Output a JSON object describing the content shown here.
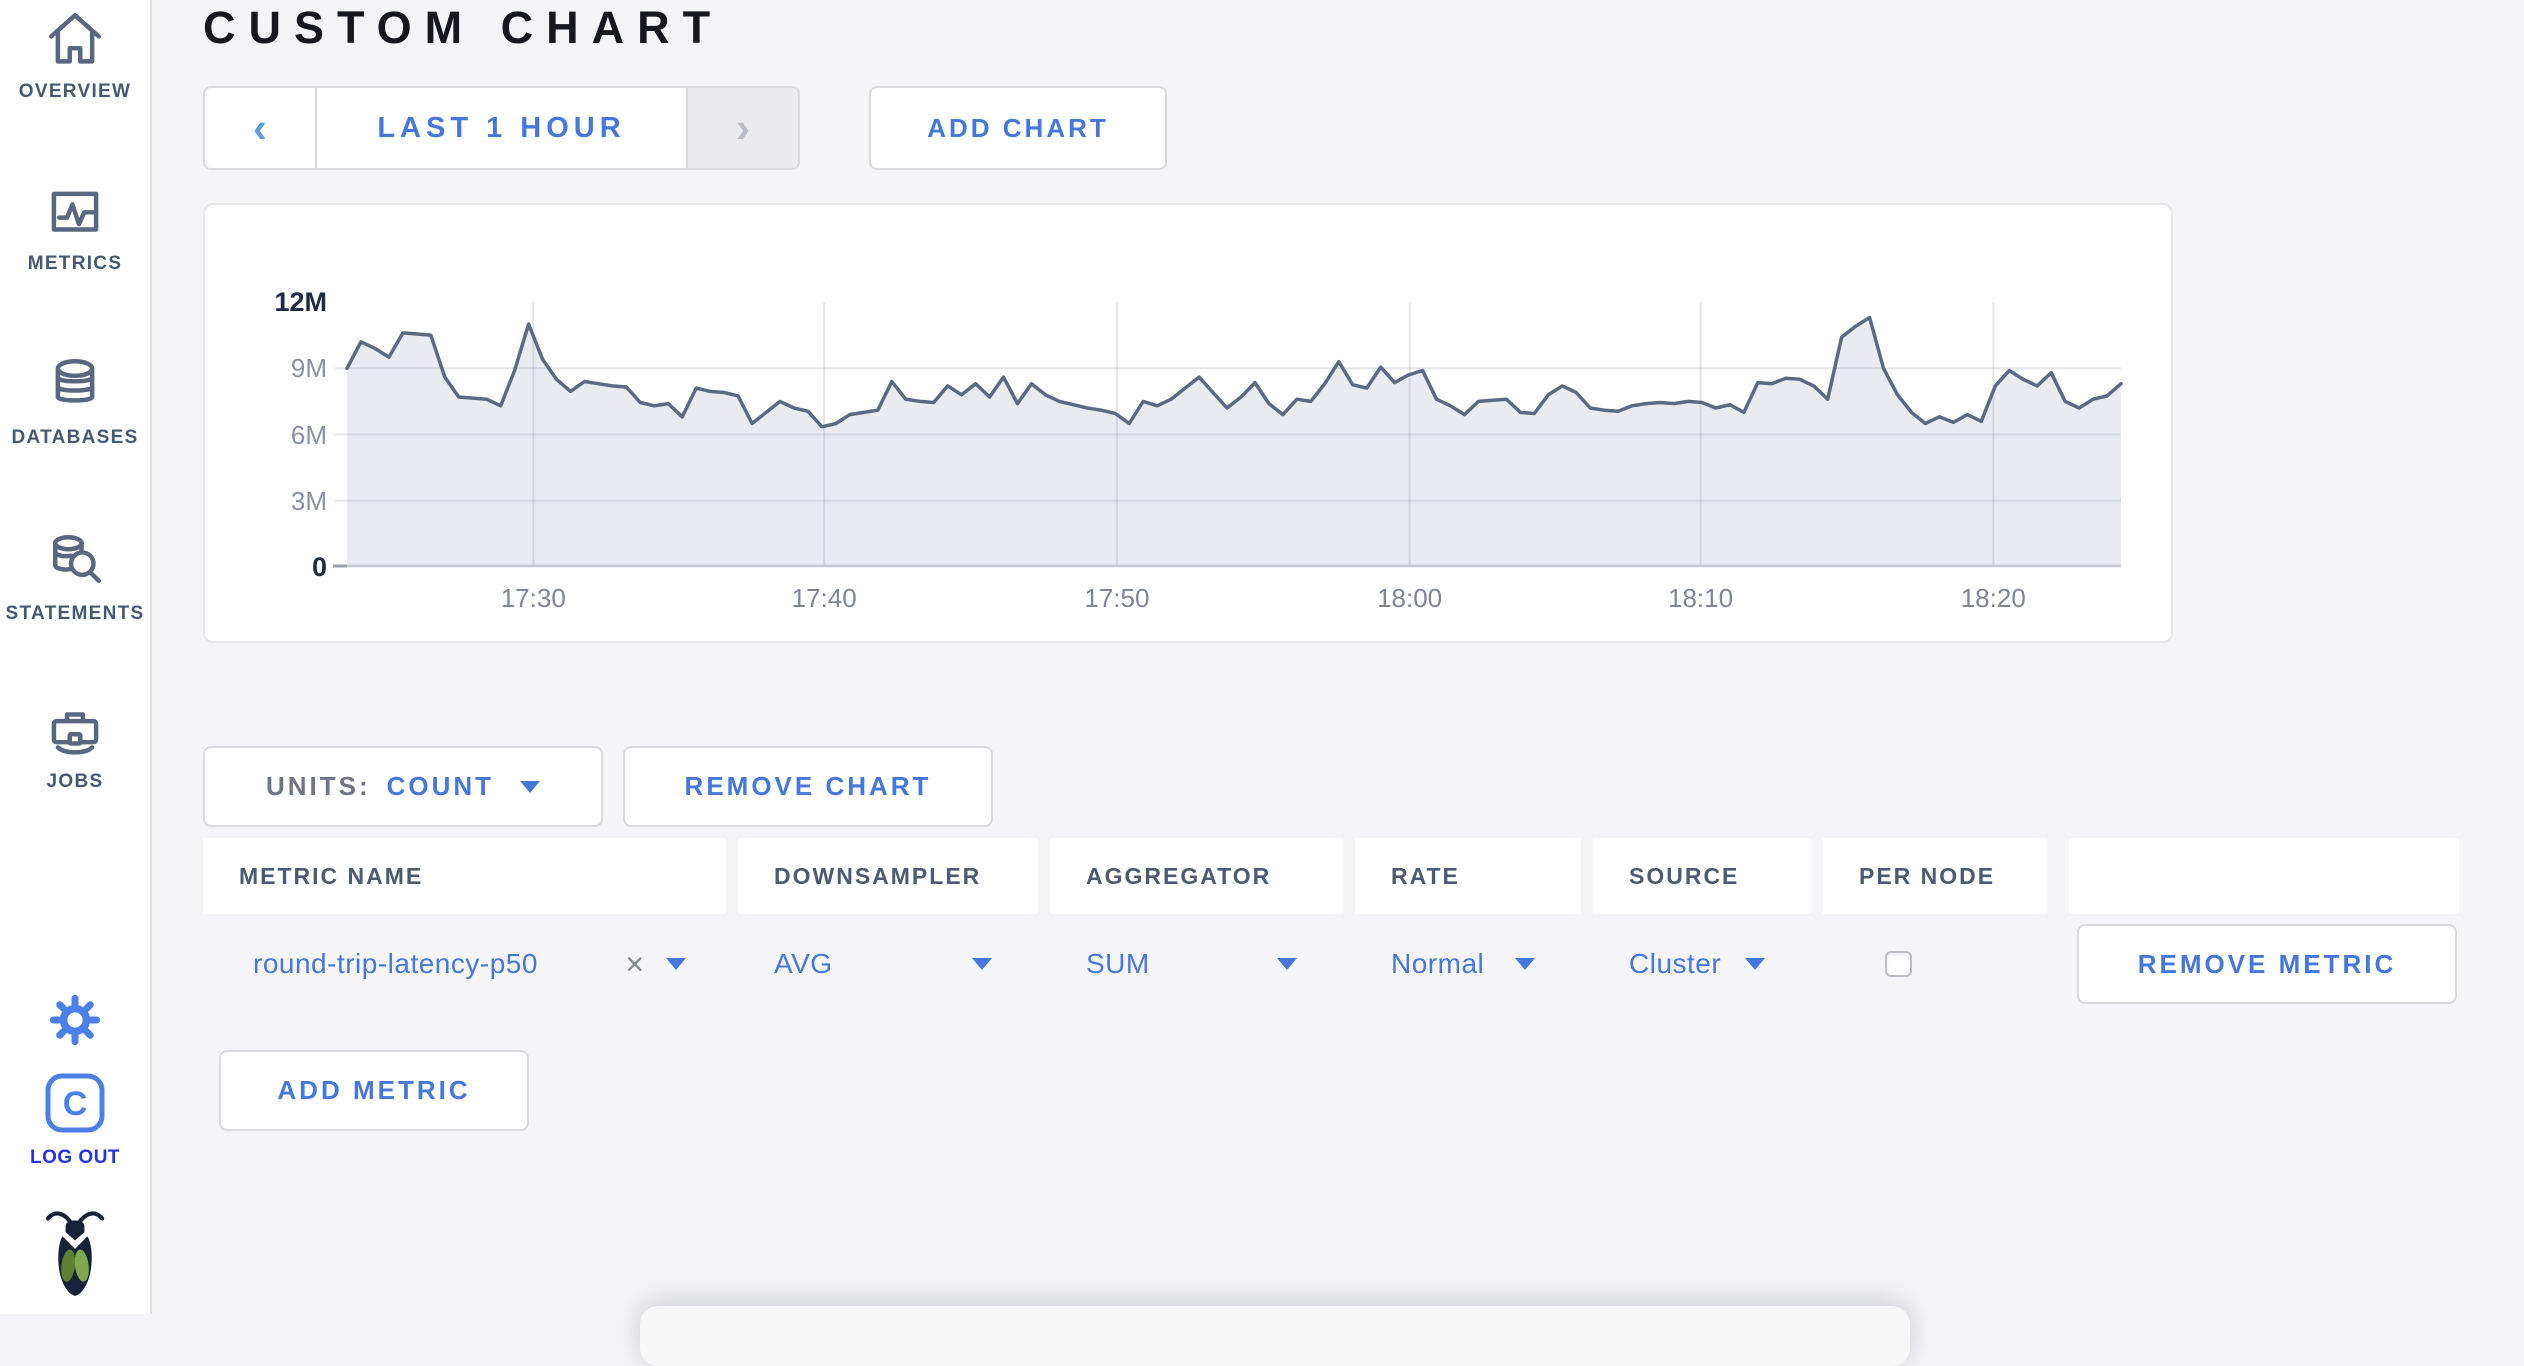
{
  "colors": {
    "accent_blue": "#4577dd",
    "logout_blue": "#2433e8",
    "sidebar_slate": "#475872",
    "title_color": "#16181d"
  },
  "header": {
    "title": "CUSTOM CHART"
  },
  "sidebar": {
    "items": [
      {
        "label": "OVERVIEW",
        "icon": "home-icon"
      },
      {
        "label": "METRICS",
        "icon": "metrics-icon"
      },
      {
        "label": "DATABASES",
        "icon": "databases-icon"
      },
      {
        "label": "STATEMENTS",
        "icon": "statements-icon"
      },
      {
        "label": "JOBS",
        "icon": "jobs-icon"
      }
    ],
    "settings_icon": "gear-icon",
    "logo_letter": "C",
    "logout_label": "LOG OUT",
    "brand_icon": "cockroach-bug-icon"
  },
  "toolbar": {
    "prev_label": "‹",
    "range_label": "LAST 1 HOUR",
    "next_label": "›",
    "add_chart_label": "ADD CHART"
  },
  "chart_data": {
    "type": "area",
    "title": "",
    "xlabel": "",
    "ylabel": "count",
    "x_range": [
      "17:23",
      "18:24"
    ],
    "ylim": [
      0,
      12000000
    ],
    "ylim_m": [
      0,
      12
    ],
    "grid": true,
    "legend": "none",
    "line_color": "#5b6984",
    "fill_color": "#e9ebf0",
    "y_ticks": [
      {
        "label": "12M",
        "v": 12
      },
      {
        "label": "9M",
        "v": 9
      },
      {
        "label": "6M",
        "v": 6
      },
      {
        "label": "3M",
        "v": 3
      },
      {
        "label": "0",
        "v": 0
      }
    ],
    "x_ticks": [
      {
        "label": "17:30",
        "f": 0.105
      },
      {
        "label": "17:40",
        "f": 0.269
      },
      {
        "label": "17:50",
        "f": 0.434
      },
      {
        "label": "18:00",
        "f": 0.599
      },
      {
        "label": "18:10",
        "f": 0.763
      },
      {
        "label": "18:20",
        "f": 0.928
      }
    ],
    "series": [
      {
        "name": "round-trip-latency-p50",
        "unit": "millions",
        "values": [
          9.0,
          10.2,
          9.9,
          9.5,
          10.6,
          10.55,
          10.5,
          8.6,
          7.7,
          7.65,
          7.6,
          7.3,
          8.9,
          11.0,
          9.4,
          8.5,
          7.95,
          8.4,
          8.3,
          8.2,
          8.15,
          7.45,
          7.3,
          7.4,
          6.8,
          8.1,
          7.95,
          7.9,
          7.75,
          6.5,
          7.0,
          7.5,
          7.2,
          7.05,
          6.35,
          6.5,
          6.9,
          7.0,
          7.1,
          8.4,
          7.6,
          7.5,
          7.45,
          8.2,
          7.8,
          8.3,
          7.7,
          8.6,
          7.4,
          8.3,
          7.8,
          7.5,
          7.35,
          7.2,
          7.1,
          6.95,
          6.5,
          7.5,
          7.3,
          7.6,
          8.1,
          8.6,
          7.9,
          7.2,
          7.7,
          8.35,
          7.4,
          6.9,
          7.6,
          7.5,
          8.3,
          9.3,
          8.25,
          8.1,
          9.05,
          8.35,
          8.7,
          8.9,
          7.6,
          7.3,
          6.9,
          7.5,
          7.55,
          7.6,
          7.0,
          6.95,
          7.8,
          8.2,
          7.9,
          7.2,
          7.1,
          7.05,
          7.3,
          7.4,
          7.45,
          7.4,
          7.5,
          7.45,
          7.2,
          7.35,
          7.0,
          8.35,
          8.3,
          8.55,
          8.5,
          8.2,
          7.6,
          10.4,
          10.9,
          11.3,
          9.0,
          7.8,
          7.0,
          6.5,
          6.8,
          6.55,
          6.9,
          6.6,
          8.2,
          8.9,
          8.5,
          8.2,
          8.8,
          7.5,
          7.2,
          7.6,
          7.75,
          8.3
        ]
      }
    ]
  },
  "units_bar": {
    "units_label": "UNITS:",
    "units_value": "COUNT",
    "remove_chart_label": "REMOVE CHART"
  },
  "metrics_table": {
    "columns": [
      "METRIC NAME",
      "DOWNSAMPLER",
      "AGGREGATOR",
      "RATE",
      "SOURCE",
      "PER NODE",
      ""
    ],
    "rows": [
      {
        "metric_name": "round-trip-latency-p50",
        "clear_label": "×",
        "downsampler": "AVG",
        "aggregator": "SUM",
        "rate": "Normal",
        "source": "Cluster",
        "per_node_checked": false,
        "remove_metric_label": "REMOVE METRIC"
      }
    ],
    "add_metric_label": "ADD METRIC"
  }
}
